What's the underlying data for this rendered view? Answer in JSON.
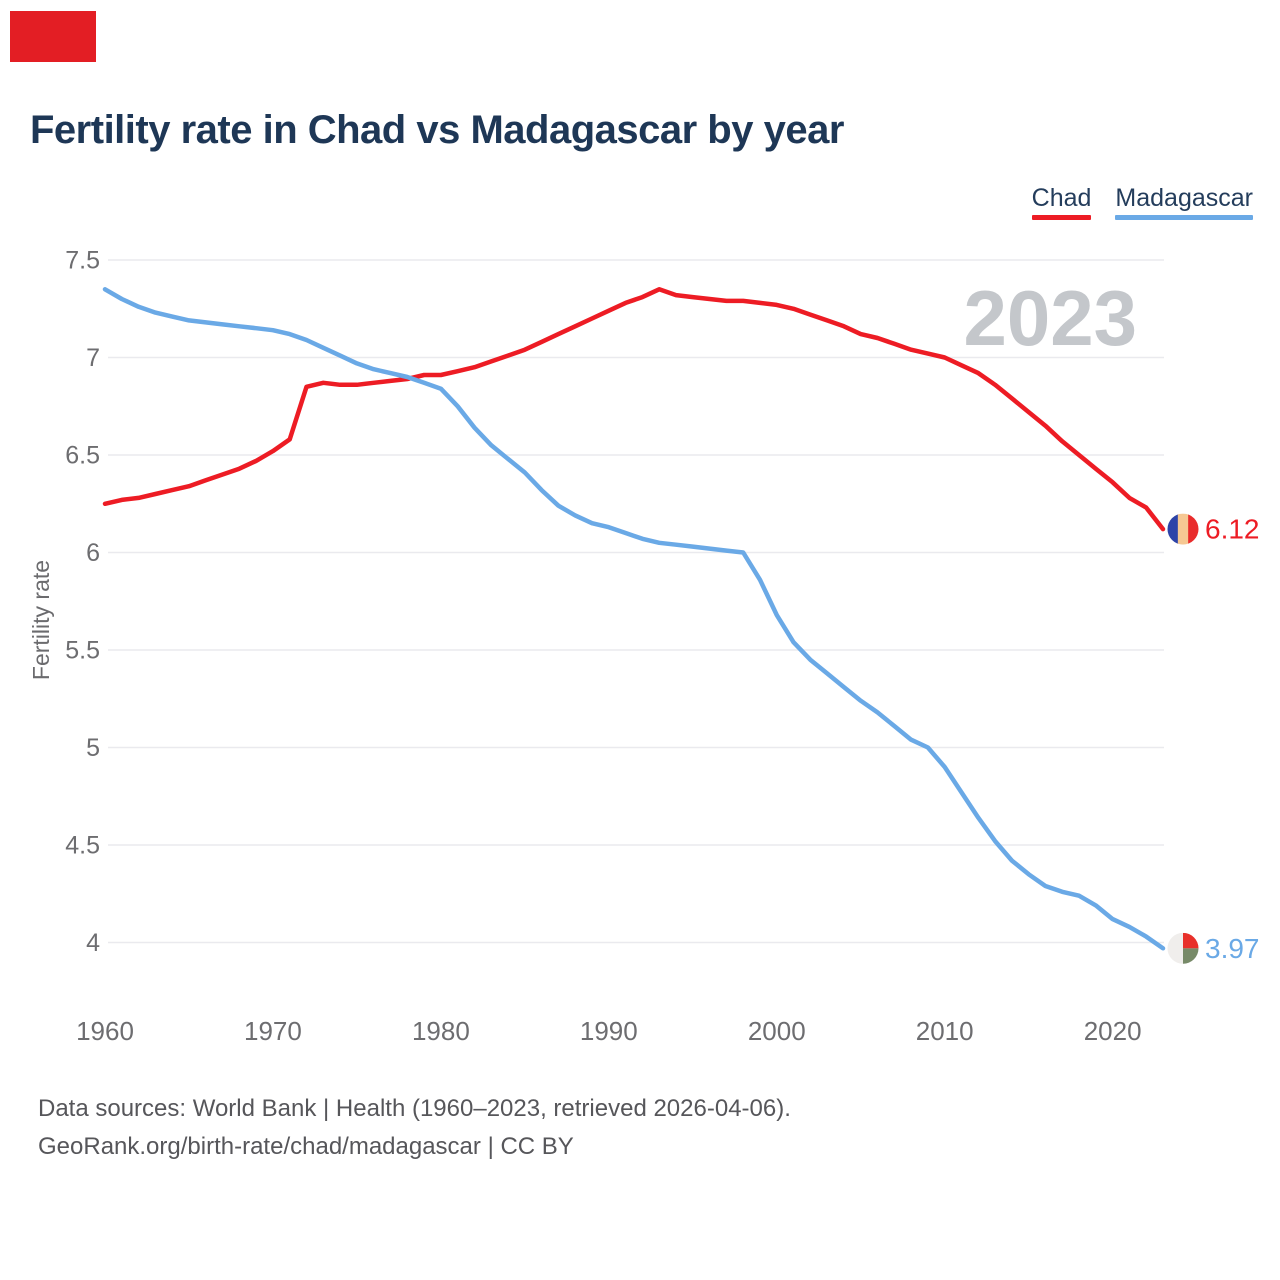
{
  "marker": {
    "color": "#e31e24"
  },
  "header": {
    "title": "Fertility rate in Chad vs Madagascar by year"
  },
  "legend": {
    "items": [
      {
        "label": "Chad",
        "color": "#ed1c24"
      },
      {
        "label": "Madagascar",
        "color": "#6aa9e6"
      }
    ]
  },
  "watermark": "2023",
  "chart_data": {
    "type": "line",
    "title": "Fertility rate in Chad vs Madagascar by year",
    "xlabel": "",
    "ylabel": "Fertility rate",
    "xlim": [
      1960,
      2023
    ],
    "ylim": [
      3.85,
      7.6
    ],
    "grid": "horizontal",
    "legend_position": "top-right",
    "x_ticks": [
      1960,
      1970,
      1980,
      1990,
      2000,
      2010,
      2020
    ],
    "y_ticks": [
      7.5,
      7,
      6.5,
      6,
      5.5,
      5,
      4.5,
      4
    ],
    "x": [
      1960,
      1961,
      1962,
      1963,
      1964,
      1965,
      1966,
      1967,
      1968,
      1969,
      1970,
      1971,
      1972,
      1973,
      1974,
      1975,
      1976,
      1977,
      1978,
      1979,
      1980,
      1981,
      1982,
      1983,
      1984,
      1985,
      1986,
      1987,
      1988,
      1989,
      1990,
      1991,
      1992,
      1993,
      1994,
      1995,
      1996,
      1997,
      1998,
      1999,
      2000,
      2001,
      2002,
      2003,
      2004,
      2005,
      2006,
      2007,
      2008,
      2009,
      2010,
      2011,
      2012,
      2013,
      2014,
      2015,
      2016,
      2017,
      2018,
      2019,
      2020,
      2021,
      2022,
      2023
    ],
    "series": [
      {
        "name": "Chad",
        "color": "#ed1c24",
        "end_label": "6.12",
        "values": [
          6.25,
          6.27,
          6.28,
          6.3,
          6.32,
          6.34,
          6.37,
          6.4,
          6.43,
          6.47,
          6.52,
          6.58,
          6.85,
          6.87,
          6.86,
          6.86,
          6.87,
          6.88,
          6.89,
          6.91,
          6.91,
          6.93,
          6.95,
          6.98,
          7.01,
          7.04,
          7.08,
          7.12,
          7.16,
          7.2,
          7.24,
          7.28,
          7.31,
          7.35,
          7.32,
          7.31,
          7.3,
          7.29,
          7.29,
          7.28,
          7.27,
          7.25,
          7.22,
          7.19,
          7.16,
          7.12,
          7.1,
          7.07,
          7.04,
          7.02,
          7.0,
          6.96,
          6.92,
          6.86,
          6.79,
          6.72,
          6.65,
          6.57,
          6.5,
          6.43,
          6.36,
          6.28,
          6.23,
          6.12
        ]
      },
      {
        "name": "Madagascar",
        "color": "#6aa9e6",
        "end_label": "3.97",
        "values": [
          7.35,
          7.3,
          7.26,
          7.23,
          7.21,
          7.19,
          7.18,
          7.17,
          7.16,
          7.15,
          7.14,
          7.12,
          7.09,
          7.05,
          7.01,
          6.97,
          6.94,
          6.92,
          6.9,
          6.87,
          6.84,
          6.75,
          6.64,
          6.55,
          6.48,
          6.41,
          6.32,
          6.24,
          6.19,
          6.15,
          6.13,
          6.1,
          6.07,
          6.05,
          6.04,
          6.03,
          6.02,
          6.01,
          6.0,
          5.86,
          5.68,
          5.54,
          5.45,
          5.38,
          5.31,
          5.24,
          5.18,
          5.11,
          5.04,
          5.0,
          4.9,
          4.77,
          4.64,
          4.52,
          4.42,
          4.35,
          4.29,
          4.26,
          4.24,
          4.19,
          4.12,
          4.08,
          4.03,
          3.97
        ]
      }
    ]
  },
  "end_markers": [
    {
      "series": "Chad",
      "label": "6.12",
      "label_color": "#ed1c24",
      "flag": "chad",
      "flag_colors": [
        "#2d43a8",
        "#f6c893",
        "#e92c2c"
      ]
    },
    {
      "series": "Madagascar",
      "label": "3.97",
      "label_color": "#6aa9e6",
      "flag": "madagascar",
      "flag_colors": [
        "#f0eeec",
        "#e8302a",
        "#778a68"
      ]
    }
  ],
  "footer": {
    "line1": "Data sources: World Bank | Health (1960–2023, retrieved 2026-04-06).",
    "line2": "GeoRank.org/birth-rate/chad/madagascar | CC BY"
  }
}
